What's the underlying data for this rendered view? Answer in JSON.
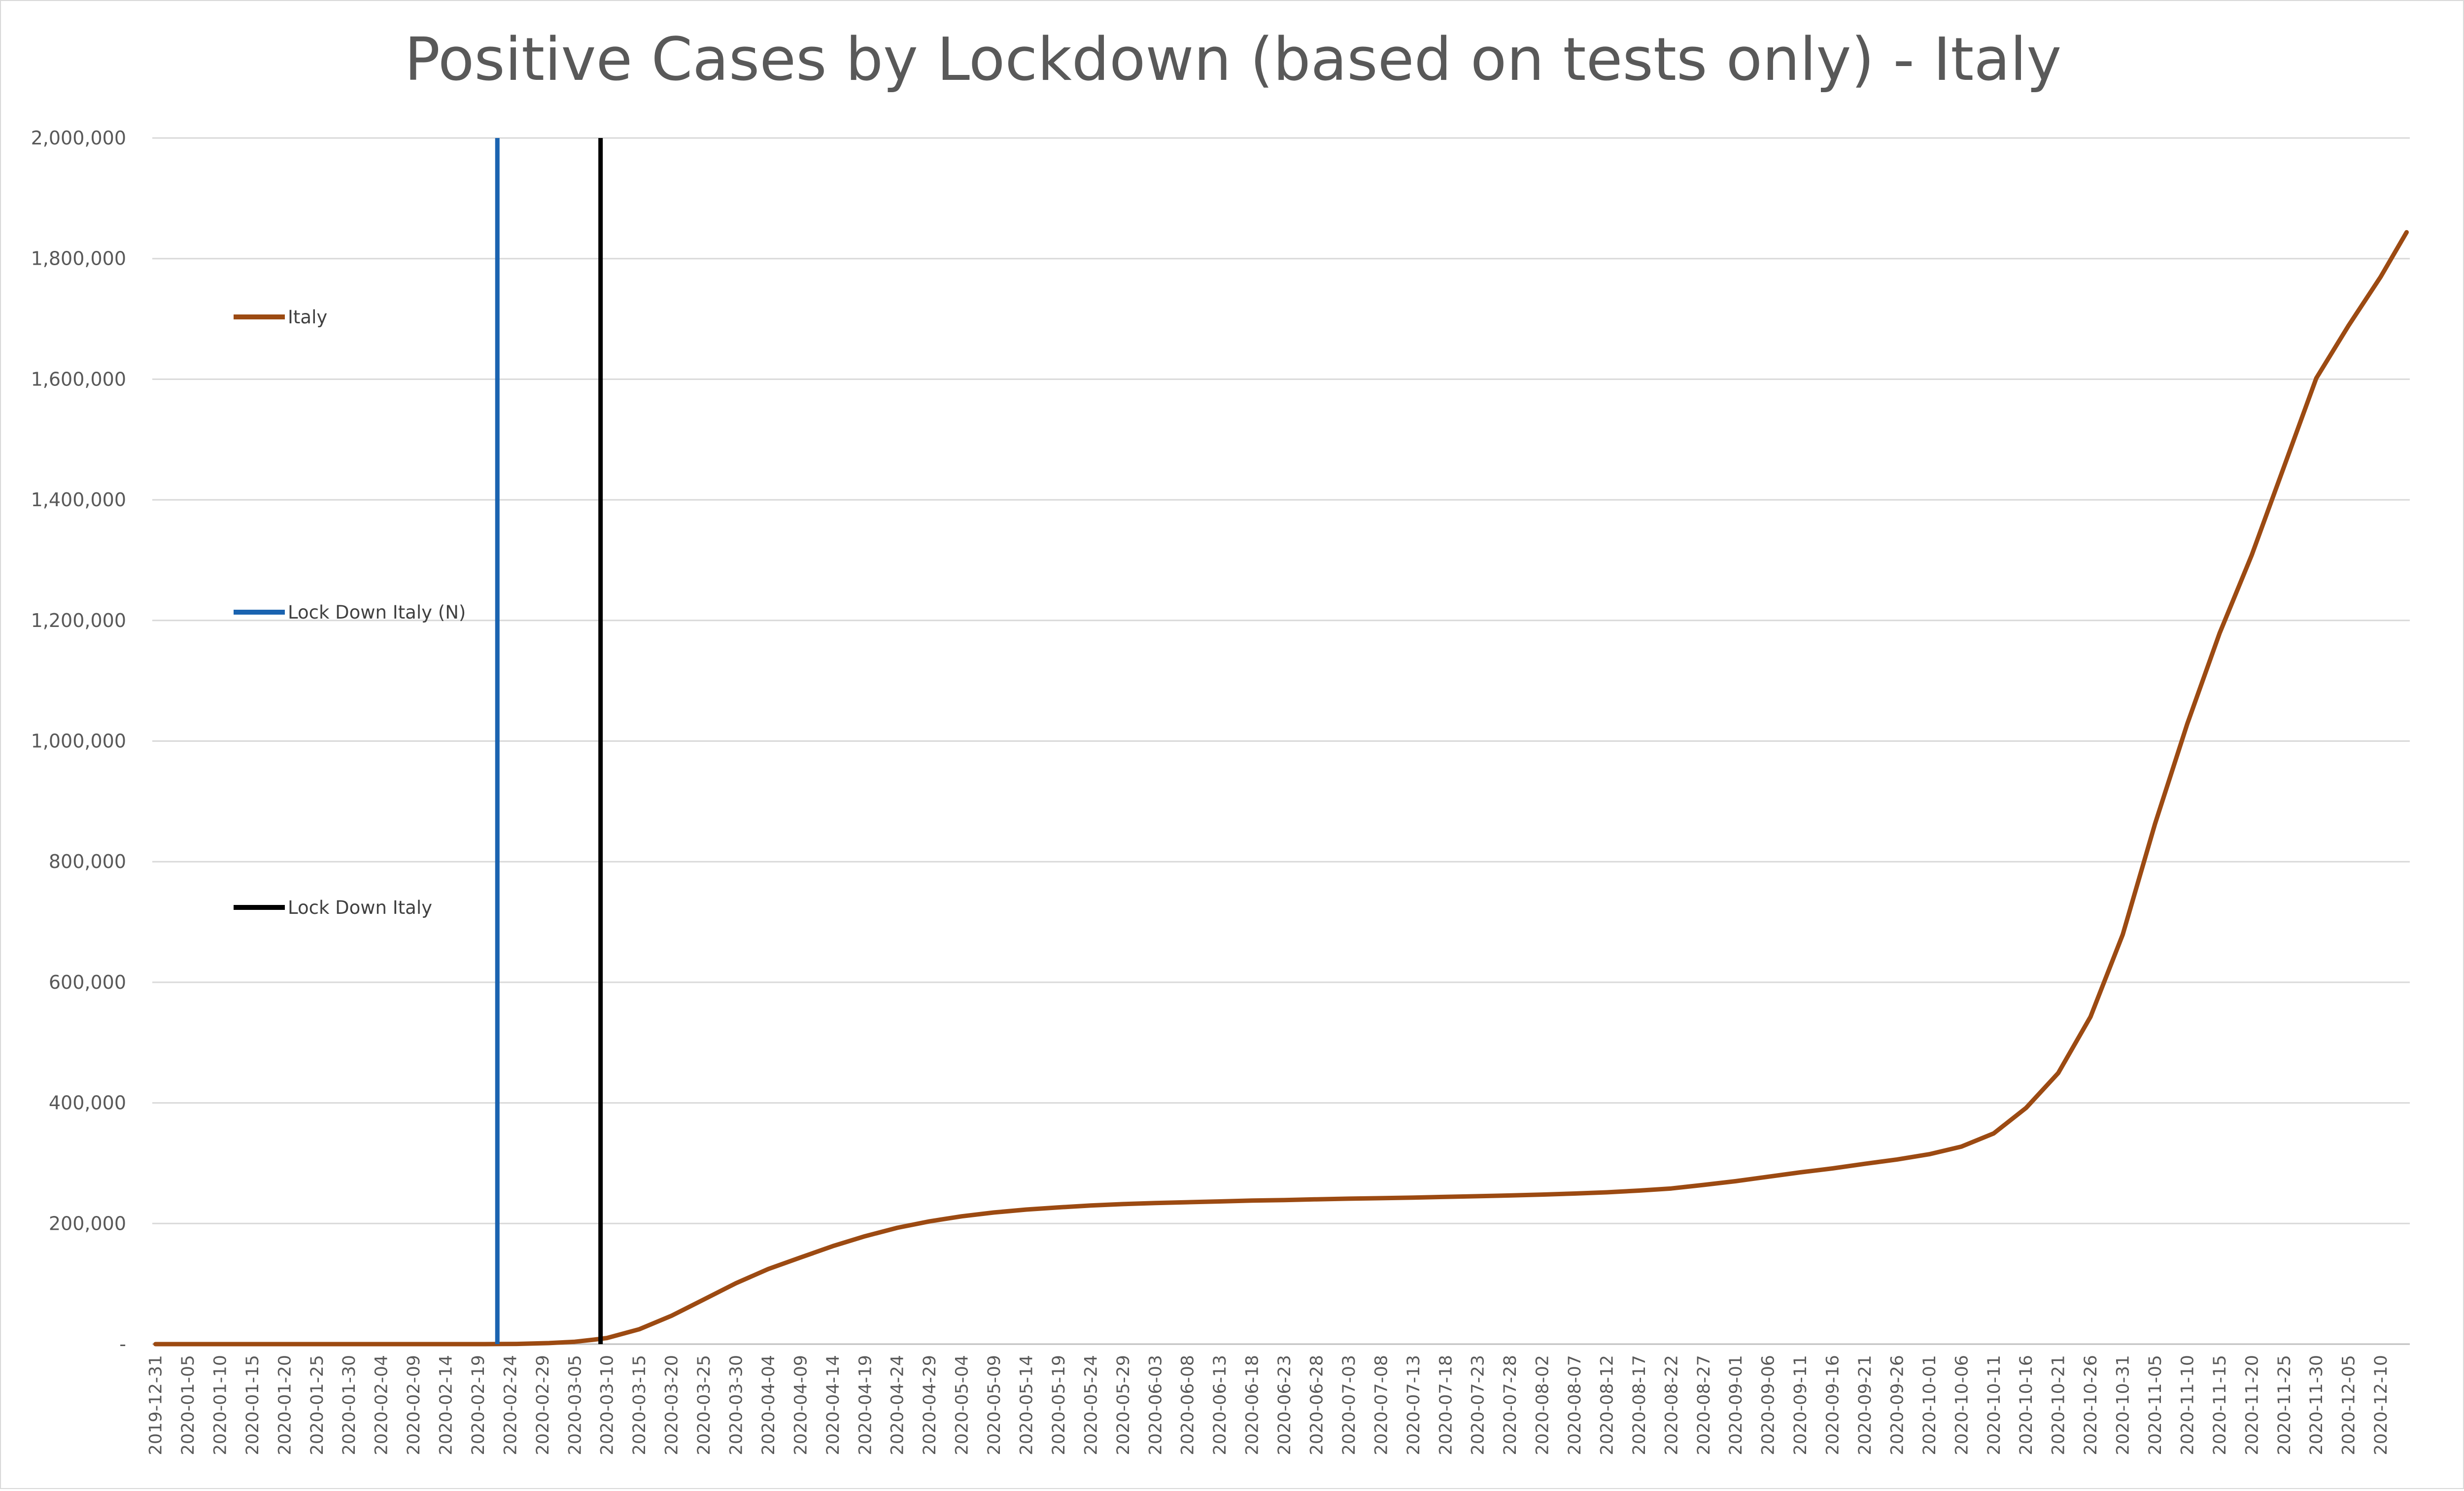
{
  "chart_data": {
    "type": "line",
    "title": "Positive Cases by Lockdown (based on tests only) - Italy",
    "xlabel": "",
    "ylabel": "",
    "ylim": [
      0,
      2000000
    ],
    "y_ticks": [
      {
        "value": 0,
        "label": "-"
      },
      {
        "value": 200000,
        "label": "200,000"
      },
      {
        "value": 400000,
        "label": "400,000"
      },
      {
        "value": 600000,
        "label": "600,000"
      },
      {
        "value": 800000,
        "label": "800,000"
      },
      {
        "value": 1000000,
        "label": "1,000,000"
      },
      {
        "value": 1200000,
        "label": "1,200,000"
      },
      {
        "value": 1400000,
        "label": "1,400,000"
      },
      {
        "value": 1600000,
        "label": "1,600,000"
      },
      {
        "value": 1800000,
        "label": "1,800,000"
      },
      {
        "value": 2000000,
        "label": "2,000,000"
      }
    ],
    "x_range": [
      "2019-12-31",
      "2020-12-14"
    ],
    "x_ticks": [
      "2019-12-31",
      "2020-01-05",
      "2020-01-10",
      "2020-01-15",
      "2020-01-20",
      "2020-01-25",
      "2020-01-30",
      "2020-02-04",
      "2020-02-09",
      "2020-02-14",
      "2020-02-19",
      "2020-02-24",
      "2020-02-29",
      "2020-03-05",
      "2020-03-10",
      "2020-03-15",
      "2020-03-20",
      "2020-03-25",
      "2020-03-30",
      "2020-04-04",
      "2020-04-09",
      "2020-04-14",
      "2020-04-19",
      "2020-04-24",
      "2020-04-29",
      "2020-05-04",
      "2020-05-09",
      "2020-05-14",
      "2020-05-19",
      "2020-05-24",
      "2020-05-29",
      "2020-06-03",
      "2020-06-08",
      "2020-06-13",
      "2020-06-18",
      "2020-06-23",
      "2020-06-28",
      "2020-07-03",
      "2020-07-08",
      "2020-07-13",
      "2020-07-18",
      "2020-07-23",
      "2020-07-28",
      "2020-08-02",
      "2020-08-07",
      "2020-08-12",
      "2020-08-17",
      "2020-08-22",
      "2020-08-27",
      "2020-09-01",
      "2020-09-06",
      "2020-09-11",
      "2020-09-16",
      "2020-09-21",
      "2020-09-26",
      "2020-10-01",
      "2020-10-06",
      "2020-10-11",
      "2020-10-16",
      "2020-10-21",
      "2020-10-26",
      "2020-10-31",
      "2020-11-05",
      "2020-11-10",
      "2020-11-15",
      "2020-11-20",
      "2020-11-25",
      "2020-11-30",
      "2020-12-05",
      "2020-12-10"
    ],
    "grid": true,
    "legend_position": "left, inside plot",
    "series": [
      {
        "name": "Italy",
        "kind": "line",
        "color": "#9c4a12",
        "points": [
          [
            "2019-12-31",
            0
          ],
          [
            "2020-02-20",
            0
          ],
          [
            "2020-02-25",
            300
          ],
          [
            "2020-03-01",
            1700
          ],
          [
            "2020-03-05",
            3900
          ],
          [
            "2020-03-08",
            7400
          ],
          [
            "2020-03-10",
            10100
          ],
          [
            "2020-03-15",
            24700
          ],
          [
            "2020-03-20",
            47000
          ],
          [
            "2020-03-25",
            74000
          ],
          [
            "2020-03-30",
            101000
          ],
          [
            "2020-04-04",
            124600
          ],
          [
            "2020-04-09",
            143600
          ],
          [
            "2020-04-14",
            162500
          ],
          [
            "2020-04-19",
            178900
          ],
          [
            "2020-04-24",
            192900
          ],
          [
            "2020-04-29",
            203600
          ],
          [
            "2020-05-04",
            211900
          ],
          [
            "2020-05-09",
            218300
          ],
          [
            "2020-05-14",
            223100
          ],
          [
            "2020-05-19",
            226700
          ],
          [
            "2020-05-24",
            229800
          ],
          [
            "2020-05-29",
            232200
          ],
          [
            "2020-06-03",
            234000
          ],
          [
            "2020-06-08",
            235300
          ],
          [
            "2020-06-13",
            236600
          ],
          [
            "2020-06-18",
            238000
          ],
          [
            "2020-06-23",
            238800
          ],
          [
            "2020-06-28",
            240100
          ],
          [
            "2020-07-03",
            241200
          ],
          [
            "2020-07-08",
            242000
          ],
          [
            "2020-07-13",
            243000
          ],
          [
            "2020-07-18",
            244200
          ],
          [
            "2020-07-23",
            245300
          ],
          [
            "2020-07-28",
            246500
          ],
          [
            "2020-08-02",
            248000
          ],
          [
            "2020-08-07",
            249700
          ],
          [
            "2020-08-12",
            251700
          ],
          [
            "2020-08-17",
            254600
          ],
          [
            "2020-08-22",
            258100
          ],
          [
            "2020-08-27",
            264000
          ],
          [
            "2020-09-01",
            270200
          ],
          [
            "2020-09-06",
            277600
          ],
          [
            "2020-09-11",
            284800
          ],
          [
            "2020-09-16",
            291400
          ],
          [
            "2020-09-21",
            299000
          ],
          [
            "2020-09-26",
            306200
          ],
          [
            "2020-10-01",
            314900
          ],
          [
            "2020-10-06",
            327600
          ],
          [
            "2020-10-11",
            349500
          ],
          [
            "2020-10-16",
            391600
          ],
          [
            "2020-10-21",
            449600
          ],
          [
            "2020-10-26",
            542800
          ],
          [
            "2020-10-31",
            679400
          ],
          [
            "2020-11-05",
            862700
          ],
          [
            "2020-11-10",
            1028400
          ],
          [
            "2020-11-15",
            1178500
          ],
          [
            "2020-11-20",
            1308500
          ],
          [
            "2020-11-25",
            1455000
          ],
          [
            "2020-11-30",
            1601600
          ],
          [
            "2020-12-05",
            1688900
          ],
          [
            "2020-12-10",
            1770100
          ],
          [
            "2020-12-14",
            1843700
          ]
        ]
      },
      {
        "name": "Lock Down Italy (N)",
        "kind": "vline",
        "color": "#1a63b0",
        "x": "2020-02-22"
      },
      {
        "name": "Lock Down Italy",
        "kind": "vline",
        "color": "#000000",
        "x": "2020-03-09"
      }
    ]
  }
}
